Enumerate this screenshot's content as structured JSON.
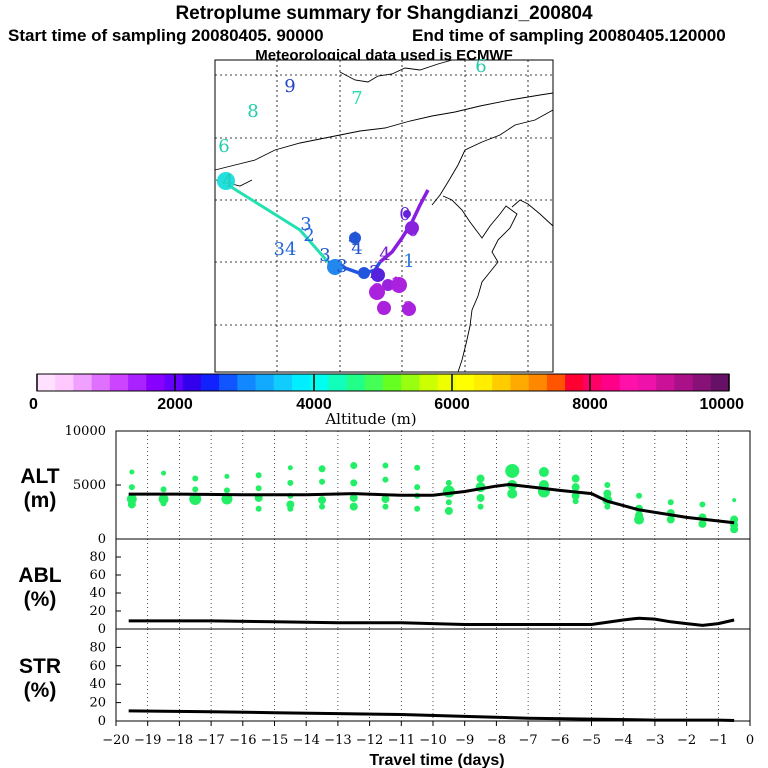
{
  "header": {
    "title": "Retroplume summary for Shangdianzi_200804",
    "start": "Start time of sampling 20080405. 90000",
    "end": "End time of sampling 20080405.120000",
    "met": "Meteorological data used is ECMWF"
  },
  "colors": {
    "plume": "#22ee66",
    "mean": "#000000",
    "track_green": "#22e0b0",
    "track_blue": "#2255dd",
    "track_purple": "#8a1ee0"
  },
  "map": {
    "trajectory_labels": [
      {
        "text": "9",
        "color": "#2244cc"
      },
      {
        "text": "8",
        "color": "#22ccaa"
      },
      {
        "text": "7",
        "color": "#22ddaa"
      },
      {
        "text": "6",
        "color": "#22ccaa"
      },
      {
        "text": "6",
        "color": "#22ccaa"
      },
      {
        "text": "4",
        "color": "#22ccbb"
      },
      {
        "text": "3",
        "color": "#2266dd"
      },
      {
        "text": "2",
        "color": "#2266dd"
      },
      {
        "text": "34",
        "color": "#2266dd"
      },
      {
        "text": "3",
        "color": "#2255cc"
      },
      {
        "text": "4",
        "color": "#2255cc"
      },
      {
        "text": "4",
        "color": "#2255cc"
      },
      {
        "text": "3",
        "color": "#2255cc"
      },
      {
        "text": "2",
        "color": "#5522dd"
      },
      {
        "text": "4",
        "color": "#7722cc"
      },
      {
        "text": "1",
        "color": "#2277dd"
      },
      {
        "text": "0",
        "color": "#6622dd"
      },
      {
        "text": "0",
        "color": "#8822dd"
      },
      {
        "text": "1",
        "color": "#aa22dd"
      },
      {
        "text": "2",
        "color": "#aa22dd"
      },
      {
        "text": "2",
        "color": "#aa22dd"
      },
      {
        "text": "2",
        "color": "#aa22dd"
      }
    ]
  },
  "colorbar": {
    "ticks": [
      "0",
      "2000",
      "4000",
      "6000",
      "8000",
      "10000"
    ],
    "title": "Altitude (m)",
    "colors": [
      "#ffe0ff",
      "#ffc8ff",
      "#f0a0ff",
      "#e070ff",
      "#cc44ff",
      "#aa22ff",
      "#8800ff",
      "#6600ff",
      "#3300ee",
      "#1122ff",
      "#1155ff",
      "#1188ff",
      "#11aaff",
      "#11ccff",
      "#00eeff",
      "#00ffee",
      "#11ffbb",
      "#22ff88",
      "#44ff55",
      "#66ff22",
      "#99ff11",
      "#ccff00",
      "#eeff00",
      "#ffff00",
      "#ffee00",
      "#ffcc00",
      "#ffaa00",
      "#ff8800",
      "#ff5500",
      "#ff0033",
      "#ff0066",
      "#ff0088",
      "#ff11aa",
      "#ee11aa",
      "#cc1199",
      "#aa1188",
      "#881177",
      "#661166"
    ]
  },
  "chart_data": [
    {
      "type": "scatter",
      "panel": "ALT",
      "ylabel_line1": "ALT",
      "ylabel_line2": "(m)",
      "ylim": [
        0,
        10000
      ],
      "yticks": [
        "0",
        "5000",
        "10000"
      ],
      "xlim": [
        -20,
        0
      ],
      "mean": {
        "x": [
          -19.6,
          -18,
          -16,
          -14,
          -12.5,
          -11,
          -10,
          -9,
          -8,
          -7.6,
          -7,
          -6,
          -5,
          -4.5,
          -3.5,
          -2,
          -0.5
        ],
        "y": [
          4150,
          4150,
          4100,
          4100,
          4200,
          4050,
          4050,
          4400,
          4900,
          5050,
          4850,
          4500,
          4200,
          3500,
          2700,
          2000,
          1500
        ]
      },
      "plume_points": [
        {
          "x": -19.5,
          "y": 6200,
          "s": 2.5
        },
        {
          "x": -19.5,
          "y": 4800,
          "s": 3
        },
        {
          "x": -19.5,
          "y": 3700,
          "s": 5
        },
        {
          "x": -19.5,
          "y": 3200,
          "s": 4
        },
        {
          "x": -18.5,
          "y": 6100,
          "s": 2.5
        },
        {
          "x": -18.5,
          "y": 4600,
          "s": 3
        },
        {
          "x": -18.5,
          "y": 3700,
          "s": 5
        },
        {
          "x": -18.5,
          "y": 3300,
          "s": 3
        },
        {
          "x": -17.5,
          "y": 5600,
          "s": 3
        },
        {
          "x": -17.5,
          "y": 4600,
          "s": 3
        },
        {
          "x": -17.5,
          "y": 3700,
          "s": 6
        },
        {
          "x": -16.5,
          "y": 5800,
          "s": 2.5
        },
        {
          "x": -16.5,
          "y": 4500,
          "s": 3
        },
        {
          "x": -16.5,
          "y": 3700,
          "s": 5.5
        },
        {
          "x": -15.5,
          "y": 5900,
          "s": 3
        },
        {
          "x": -15.5,
          "y": 4700,
          "s": 3
        },
        {
          "x": -15.5,
          "y": 3800,
          "s": 4
        },
        {
          "x": -15.5,
          "y": 2800,
          "s": 3
        },
        {
          "x": -14.5,
          "y": 6600,
          "s": 2.5
        },
        {
          "x": -14.5,
          "y": 5200,
          "s": 3
        },
        {
          "x": -14.5,
          "y": 4000,
          "s": 3
        },
        {
          "x": -14.5,
          "y": 3200,
          "s": 4
        },
        {
          "x": -14.5,
          "y": 2800,
          "s": 3
        },
        {
          "x": -13.5,
          "y": 6500,
          "s": 3.5
        },
        {
          "x": -13.5,
          "y": 5300,
          "s": 3
        },
        {
          "x": -13.5,
          "y": 3600,
          "s": 4
        },
        {
          "x": -13.5,
          "y": 3000,
          "s": 3
        },
        {
          "x": -12.5,
          "y": 6800,
          "s": 3.5
        },
        {
          "x": -12.5,
          "y": 5200,
          "s": 3.5
        },
        {
          "x": -12.5,
          "y": 3800,
          "s": 4
        },
        {
          "x": -12.5,
          "y": 3000,
          "s": 4
        },
        {
          "x": -11.5,
          "y": 6800,
          "s": 3
        },
        {
          "x": -11.5,
          "y": 5500,
          "s": 3
        },
        {
          "x": -11.5,
          "y": 3700,
          "s": 4
        },
        {
          "x": -11.5,
          "y": 3000,
          "s": 3
        },
        {
          "x": -10.5,
          "y": 6600,
          "s": 3
        },
        {
          "x": -10.5,
          "y": 4800,
          "s": 3
        },
        {
          "x": -10.5,
          "y": 4000,
          "s": 3
        },
        {
          "x": -10.5,
          "y": 2800,
          "s": 3
        },
        {
          "x": -9.5,
          "y": 5200,
          "s": 3
        },
        {
          "x": -9.5,
          "y": 4400,
          "s": 6
        },
        {
          "x": -9.5,
          "y": 3400,
          "s": 3
        },
        {
          "x": -9.5,
          "y": 2600,
          "s": 4
        },
        {
          "x": -8.5,
          "y": 5600,
          "s": 4
        },
        {
          "x": -8.5,
          "y": 4800,
          "s": 5
        },
        {
          "x": -8.5,
          "y": 3800,
          "s": 4
        },
        {
          "x": -8.5,
          "y": 3000,
          "s": 3
        },
        {
          "x": -7.5,
          "y": 6300,
          "s": 7
        },
        {
          "x": -7.5,
          "y": 5000,
          "s": 5
        },
        {
          "x": -7.5,
          "y": 4200,
          "s": 5
        },
        {
          "x": -6.5,
          "y": 6200,
          "s": 5
        },
        {
          "x": -6.5,
          "y": 5000,
          "s": 5
        },
        {
          "x": -6.5,
          "y": 4400,
          "s": 6
        },
        {
          "x": -5.5,
          "y": 5600,
          "s": 4
        },
        {
          "x": -5.5,
          "y": 4800,
          "s": 4
        },
        {
          "x": -5.5,
          "y": 4000,
          "s": 4
        },
        {
          "x": -5.5,
          "y": 3500,
          "s": 3
        },
        {
          "x": -4.5,
          "y": 5000,
          "s": 3
        },
        {
          "x": -4.5,
          "y": 4200,
          "s": 4
        },
        {
          "x": -4.5,
          "y": 3600,
          "s": 5
        },
        {
          "x": -4.5,
          "y": 3000,
          "s": 3
        },
        {
          "x": -3.5,
          "y": 4000,
          "s": 3
        },
        {
          "x": -3.5,
          "y": 2800,
          "s": 4
        },
        {
          "x": -3.5,
          "y": 2200,
          "s": 4
        },
        {
          "x": -3.5,
          "y": 1800,
          "s": 5
        },
        {
          "x": -2.5,
          "y": 3400,
          "s": 3
        },
        {
          "x": -2.5,
          "y": 2400,
          "s": 4
        },
        {
          "x": -2.5,
          "y": 1800,
          "s": 4
        },
        {
          "x": -1.5,
          "y": 3200,
          "s": 3
        },
        {
          "x": -1.5,
          "y": 2000,
          "s": 4
        },
        {
          "x": -1.5,
          "y": 1400,
          "s": 4
        },
        {
          "x": -0.5,
          "y": 3600,
          "s": 2
        },
        {
          "x": -0.5,
          "y": 1800,
          "s": 4
        },
        {
          "x": -0.5,
          "y": 1300,
          "s": 4
        },
        {
          "x": -0.5,
          "y": 900,
          "s": 4
        }
      ]
    },
    {
      "type": "line",
      "panel": "ABL",
      "ylabel_line1": "ABL",
      "ylabel_line2": "(%)",
      "ylim": [
        0,
        100
      ],
      "yticks": [
        "0",
        "20",
        "40",
        "60",
        "80"
      ],
      "xlim": [
        -20,
        0
      ],
      "x": [
        -19.6,
        -17,
        -15,
        -13,
        -11,
        -9,
        -7,
        -5,
        -4,
        -3.5,
        -3,
        -2.5,
        -2,
        -1.5,
        -1,
        -0.5
      ],
      "y": [
        9,
        9,
        8,
        7,
        7,
        5,
        5,
        5,
        10,
        12,
        11,
        8,
        6,
        4,
        6,
        10
      ]
    },
    {
      "type": "line",
      "panel": "STR",
      "ylabel_line1": "STR",
      "ylabel_line2": "(%)",
      "ylim": [
        0,
        100
      ],
      "yticks": [
        "0",
        "20",
        "40",
        "60",
        "80"
      ],
      "xlim": [
        -20,
        0
      ],
      "x": [
        -19.6,
        -17,
        -15,
        -13,
        -11,
        -9,
        -7,
        -5,
        -3,
        -1,
        -0.5
      ],
      "y": [
        11,
        10,
        9,
        8,
        7,
        5,
        3,
        2,
        1,
        1,
        0.5
      ]
    }
  ],
  "xaxis": {
    "ticks": [
      "−20",
      "−19",
      "−18",
      "−17",
      "−16",
      "−15",
      "−14",
      "−13",
      "−12",
      "−11",
      "−10",
      "−9",
      "−8",
      "−7",
      "−6",
      "−5",
      "−4",
      "−3",
      "−2",
      "−1",
      "0"
    ],
    "title": "Travel time (days)"
  }
}
